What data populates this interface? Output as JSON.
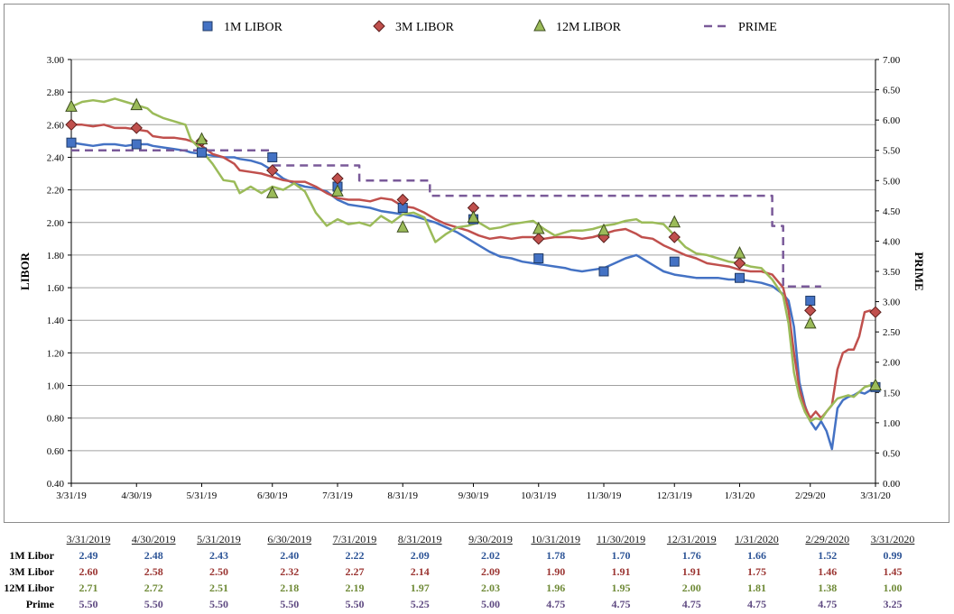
{
  "chart_data": {
    "type": "line",
    "title": "",
    "ylabel": "LIBOR",
    "y2label": "PRIME",
    "ylim": [
      0.4,
      3.0
    ],
    "y2lim": [
      0.0,
      7.0
    ],
    "yticks": [
      "0.40",
      "0.60",
      "0.80",
      "1.00",
      "1.20",
      "1.40",
      "1.60",
      "1.80",
      "2.00",
      "2.20",
      "2.40",
      "2.60",
      "2.80",
      "3.00"
    ],
    "y2ticks": [
      "0.00",
      "0.50",
      "1.00",
      "1.50",
      "2.00",
      "2.50",
      "3.00",
      "3.50",
      "4.00",
      "4.50",
      "5.00",
      "5.50",
      "6.00",
      "6.50",
      "7.00"
    ],
    "xticks": [
      "3/31/19",
      "4/30/19",
      "5/31/19",
      "6/30/19",
      "7/31/19",
      "8/31/19",
      "9/30/19",
      "10/31/19",
      "11/30/19",
      "12/31/19",
      "1/31/20",
      "2/29/20",
      "3/31/20"
    ],
    "grid": true,
    "legend_position": "top",
    "colors": {
      "libor1m": "#4472c4",
      "libor3m": "#c0504d",
      "libor12m": "#9bbb59",
      "prime": "#7a5a99",
      "grid": "#a0a0a0"
    },
    "series": [
      {
        "name": "1M LIBOR",
        "marker": "square",
        "color": "#4472c4",
        "line": [
          [
            0,
            2.49
          ],
          [
            2,
            2.48
          ],
          [
            4,
            2.47
          ],
          [
            6,
            2.48
          ],
          [
            8,
            2.48
          ],
          [
            10,
            2.47
          ],
          [
            12,
            2.48
          ],
          [
            14,
            2.48
          ],
          [
            15,
            2.47
          ],
          [
            17,
            2.46
          ],
          [
            19,
            2.45
          ],
          [
            21,
            2.44
          ],
          [
            22,
            2.43
          ],
          [
            24,
            2.42
          ],
          [
            26,
            2.41
          ],
          [
            28,
            2.4
          ],
          [
            30,
            2.4
          ],
          [
            31,
            2.39
          ],
          [
            33,
            2.38
          ],
          [
            35,
            2.36
          ],
          [
            37,
            2.32
          ],
          [
            39,
            2.27
          ],
          [
            41,
            2.24
          ],
          [
            43,
            2.22
          ],
          [
            45,
            2.21
          ],
          [
            47,
            2.19
          ],
          [
            49,
            2.14
          ],
          [
            51,
            2.11
          ],
          [
            53,
            2.1
          ],
          [
            55,
            2.09
          ],
          [
            57,
            2.07
          ],
          [
            59,
            2.06
          ],
          [
            61,
            2.05
          ],
          [
            63,
            2.04
          ],
          [
            65,
            2.02
          ],
          [
            67,
            2.0
          ],
          [
            69,
            1.97
          ],
          [
            71,
            1.94
          ],
          [
            73,
            1.9
          ],
          [
            75,
            1.86
          ],
          [
            77,
            1.82
          ],
          [
            79,
            1.79
          ],
          [
            81,
            1.78
          ],
          [
            83,
            1.76
          ],
          [
            85,
            1.75
          ],
          [
            87,
            1.74
          ],
          [
            89,
            1.73
          ],
          [
            91,
            1.72
          ],
          [
            92,
            1.71
          ],
          [
            94,
            1.7
          ],
          [
            96,
            1.71
          ],
          [
            98,
            1.72
          ],
          [
            100,
            1.75
          ],
          [
            102,
            1.78
          ],
          [
            104,
            1.8
          ],
          [
            105,
            1.78
          ],
          [
            107,
            1.74
          ],
          [
            109,
            1.7
          ],
          [
            111,
            1.68
          ],
          [
            113,
            1.67
          ],
          [
            115,
            1.66
          ],
          [
            117,
            1.66
          ],
          [
            119,
            1.66
          ],
          [
            121,
            1.65
          ],
          [
            123,
            1.65
          ],
          [
            125,
            1.64
          ],
          [
            127,
            1.63
          ],
          [
            129,
            1.61
          ],
          [
            131,
            1.56
          ],
          [
            132,
            1.52
          ],
          [
            133,
            1.36
          ],
          [
            134,
            1.02
          ],
          [
            135,
            0.88
          ],
          [
            136,
            0.78
          ],
          [
            137,
            0.73
          ],
          [
            138,
            0.78
          ],
          [
            139,
            0.72
          ],
          [
            140,
            0.61
          ],
          [
            141,
            0.86
          ],
          [
            142,
            0.91
          ],
          [
            143,
            0.93
          ],
          [
            144,
            0.94
          ],
          [
            145,
            0.96
          ],
          [
            146,
            0.95
          ],
          [
            147,
            0.97
          ],
          [
            148,
            0.99
          ]
        ],
        "markers": [
          2.49,
          2.48,
          2.43,
          2.4,
          2.22,
          2.09,
          2.02,
          1.78,
          1.7,
          1.76,
          1.66,
          1.52,
          0.99
        ]
      },
      {
        "name": "3M LIBOR",
        "marker": "diamond",
        "color": "#c0504d",
        "line": [
          [
            0,
            2.6
          ],
          [
            2,
            2.6
          ],
          [
            4,
            2.59
          ],
          [
            6,
            2.6
          ],
          [
            8,
            2.58
          ],
          [
            10,
            2.58
          ],
          [
            12,
            2.57
          ],
          [
            14,
            2.56
          ],
          [
            15,
            2.53
          ],
          [
            17,
            2.52
          ],
          [
            19,
            2.52
          ],
          [
            21,
            2.51
          ],
          [
            22,
            2.5
          ],
          [
            24,
            2.47
          ],
          [
            26,
            2.42
          ],
          [
            28,
            2.4
          ],
          [
            30,
            2.36
          ],
          [
            31,
            2.32
          ],
          [
            33,
            2.31
          ],
          [
            35,
            2.3
          ],
          [
            37,
            2.28
          ],
          [
            39,
            2.26
          ],
          [
            41,
            2.25
          ],
          [
            43,
            2.25
          ],
          [
            45,
            2.22
          ],
          [
            47,
            2.18
          ],
          [
            49,
            2.15
          ],
          [
            51,
            2.14
          ],
          [
            53,
            2.14
          ],
          [
            55,
            2.13
          ],
          [
            57,
            2.15
          ],
          [
            59,
            2.14
          ],
          [
            61,
            2.1
          ],
          [
            63,
            2.09
          ],
          [
            65,
            2.06
          ],
          [
            67,
            2.02
          ],
          [
            69,
            1.99
          ],
          [
            71,
            1.97
          ],
          [
            73,
            1.95
          ],
          [
            75,
            1.92
          ],
          [
            77,
            1.9
          ],
          [
            79,
            1.91
          ],
          [
            81,
            1.9
          ],
          [
            83,
            1.91
          ],
          [
            85,
            1.91
          ],
          [
            87,
            1.9
          ],
          [
            89,
            1.91
          ],
          [
            91,
            1.91
          ],
          [
            92,
            1.91
          ],
          [
            94,
            1.9
          ],
          [
            96,
            1.91
          ],
          [
            98,
            1.93
          ],
          [
            100,
            1.95
          ],
          [
            102,
            1.96
          ],
          [
            104,
            1.93
          ],
          [
            105,
            1.91
          ],
          [
            107,
            1.9
          ],
          [
            109,
            1.86
          ],
          [
            111,
            1.83
          ],
          [
            113,
            1.8
          ],
          [
            115,
            1.78
          ],
          [
            117,
            1.75
          ],
          [
            119,
            1.74
          ],
          [
            121,
            1.73
          ],
          [
            123,
            1.71
          ],
          [
            125,
            1.7
          ],
          [
            127,
            1.7
          ],
          [
            129,
            1.68
          ],
          [
            131,
            1.6
          ],
          [
            132,
            1.46
          ],
          [
            133,
            1.2
          ],
          [
            134,
            0.98
          ],
          [
            135,
            0.87
          ],
          [
            136,
            0.8
          ],
          [
            137,
            0.84
          ],
          [
            138,
            0.8
          ],
          [
            139,
            0.84
          ],
          [
            140,
            0.88
          ],
          [
            141,
            1.1
          ],
          [
            142,
            1.2
          ],
          [
            143,
            1.22
          ],
          [
            144,
            1.22
          ],
          [
            145,
            1.3
          ],
          [
            146,
            1.45
          ],
          [
            147,
            1.46
          ],
          [
            148,
            1.45
          ]
        ],
        "markers": [
          2.6,
          2.58,
          2.5,
          2.32,
          2.27,
          2.14,
          2.09,
          1.9,
          1.91,
          1.91,
          1.75,
          1.46,
          1.45
        ]
      },
      {
        "name": "12M LIBOR",
        "marker": "triangle",
        "color": "#9bbb59",
        "line": [
          [
            0,
            2.71
          ],
          [
            2,
            2.74
          ],
          [
            4,
            2.75
          ],
          [
            6,
            2.74
          ],
          [
            8,
            2.76
          ],
          [
            10,
            2.74
          ],
          [
            12,
            2.72
          ],
          [
            14,
            2.7
          ],
          [
            15,
            2.67
          ],
          [
            17,
            2.64
          ],
          [
            19,
            2.62
          ],
          [
            21,
            2.6
          ],
          [
            22,
            2.51
          ],
          [
            24,
            2.44
          ],
          [
            26,
            2.36
          ],
          [
            28,
            2.26
          ],
          [
            30,
            2.25
          ],
          [
            31,
            2.18
          ],
          [
            33,
            2.22
          ],
          [
            35,
            2.18
          ],
          [
            37,
            2.22
          ],
          [
            39,
            2.2
          ],
          [
            41,
            2.24
          ],
          [
            43,
            2.19
          ],
          [
            45,
            2.06
          ],
          [
            47,
            1.98
          ],
          [
            49,
            2.02
          ],
          [
            51,
            1.99
          ],
          [
            53,
            2.0
          ],
          [
            55,
            1.98
          ],
          [
            57,
            2.04
          ],
          [
            59,
            2.0
          ],
          [
            61,
            2.05
          ],
          [
            63,
            2.06
          ],
          [
            65,
            2.03
          ],
          [
            67,
            1.88
          ],
          [
            69,
            1.93
          ],
          [
            71,
            1.97
          ],
          [
            73,
            1.98
          ],
          [
            75,
            2.0
          ],
          [
            77,
            1.96
          ],
          [
            79,
            1.97
          ],
          [
            81,
            1.99
          ],
          [
            83,
            2.0
          ],
          [
            85,
            2.01
          ],
          [
            87,
            1.96
          ],
          [
            89,
            1.92
          ],
          [
            91,
            1.94
          ],
          [
            92,
            1.95
          ],
          [
            94,
            1.95
          ],
          [
            96,
            1.96
          ],
          [
            98,
            1.98
          ],
          [
            100,
            1.99
          ],
          [
            102,
            2.01
          ],
          [
            104,
            2.02
          ],
          [
            105,
            2.0
          ],
          [
            107,
            2.0
          ],
          [
            109,
            1.99
          ],
          [
            111,
            1.92
          ],
          [
            113,
            1.85
          ],
          [
            115,
            1.81
          ],
          [
            117,
            1.8
          ],
          [
            119,
            1.78
          ],
          [
            121,
            1.76
          ],
          [
            123,
            1.75
          ],
          [
            125,
            1.73
          ],
          [
            127,
            1.72
          ],
          [
            129,
            1.65
          ],
          [
            131,
            1.55
          ],
          [
            132,
            1.38
          ],
          [
            133,
            1.08
          ],
          [
            134,
            0.93
          ],
          [
            135,
            0.84
          ],
          [
            136,
            0.78
          ],
          [
            137,
            0.8
          ],
          [
            138,
            0.79
          ],
          [
            139,
            0.84
          ],
          [
            140,
            0.88
          ],
          [
            141,
            0.92
          ],
          [
            142,
            0.93
          ],
          [
            143,
            0.94
          ],
          [
            144,
            0.93
          ],
          [
            145,
            0.96
          ],
          [
            146,
            0.99
          ],
          [
            147,
            1.0
          ],
          [
            148,
            1.0
          ]
        ],
        "markers": [
          2.71,
          2.72,
          2.51,
          2.18,
          2.19,
          1.97,
          2.03,
          1.96,
          1.95,
          2.0,
          1.81,
          1.38,
          1.0
        ]
      },
      {
        "name": "PRIME",
        "marker": "dashed",
        "color": "#7a5a99",
        "axis": "right",
        "line": [
          [
            0,
            5.5
          ],
          [
            37,
            5.5
          ],
          [
            37,
            5.25
          ],
          [
            53,
            5.25
          ],
          [
            53,
            5.0
          ],
          [
            66,
            5.0
          ],
          [
            66,
            4.75
          ],
          [
            129,
            4.75
          ],
          [
            129,
            4.25
          ],
          [
            131,
            4.25
          ],
          [
            131,
            3.25
          ],
          [
            138,
            3.25
          ]
        ]
      }
    ]
  },
  "table": {
    "dates": [
      "3/31/2019",
      "4/30/2019",
      "5/31/2019",
      "6/30/2019",
      "7/31/2019",
      "8/31/2019",
      "9/30/2019",
      "10/31/2019",
      "11/30/2019",
      "12/31/2019",
      "1/31/2020",
      "2/29/2020",
      "3/31/2020"
    ],
    "rows": [
      {
        "label": "1M Libor",
        "color": "#2e5597",
        "values": [
          "2.49",
          "2.48",
          "2.43",
          "2.40",
          "2.22",
          "2.09",
          "2.02",
          "1.78",
          "1.70",
          "1.76",
          "1.66",
          "1.52",
          "0.99"
        ]
      },
      {
        "label": "3M Libor",
        "color": "#9b3532",
        "values": [
          "2.60",
          "2.58",
          "2.50",
          "2.32",
          "2.27",
          "2.14",
          "2.09",
          "1.90",
          "1.91",
          "1.91",
          "1.75",
          "1.46",
          "1.45"
        ]
      },
      {
        "label": "12M Libor",
        "color": "#6f8a37",
        "values": [
          "2.71",
          "2.72",
          "2.51",
          "2.18",
          "2.19",
          "1.97",
          "2.03",
          "1.96",
          "1.95",
          "2.00",
          "1.81",
          "1.38",
          "1.00"
        ]
      },
      {
        "label": "Prime",
        "color": "#5f4a82",
        "values": [
          "5.50",
          "5.50",
          "5.50",
          "5.50",
          "5.50",
          "5.25",
          "5.00",
          "4.75",
          "4.75",
          "4.75",
          "4.75",
          "4.75",
          "3.25"
        ]
      }
    ]
  }
}
